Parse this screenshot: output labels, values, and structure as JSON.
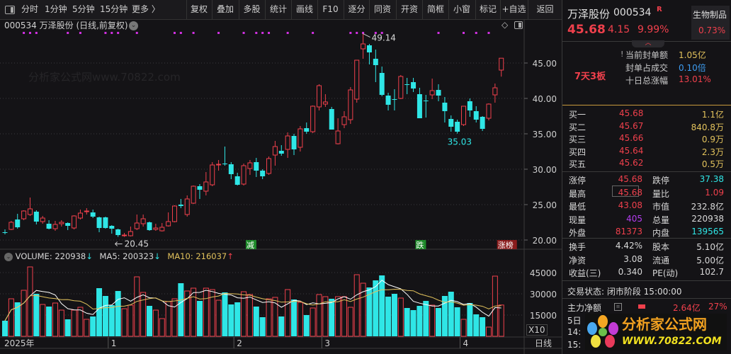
{
  "toolbar": {
    "periods": [
      "分时",
      "1分钟",
      "5分钟",
      "15分钟",
      "更多 〉"
    ],
    "buttons": [
      "复权",
      "叠加",
      "多股",
      "统计",
      "画线",
      "F10",
      "逐分",
      "同资",
      "开资",
      "简框",
      "小窗",
      "标记",
      "+自选",
      "返回"
    ]
  },
  "chart_header": {
    "title": "000534 万泽股份 (日线,前复权)"
  },
  "watermark": "分析家公式网www.70822.com",
  "logo_text": {
    "cn": "分析家公式网",
    "url": "WWW.70822.COM"
  },
  "stock": {
    "name": "万泽股份",
    "code": "000534",
    "badge": "R",
    "price": "45.68",
    "change": "4.15",
    "change_pct": "9.99%",
    "sector": "生物制品",
    "sector_pct": "0.73%"
  },
  "limit_info": {
    "streak": "7天3板",
    "rows": [
      {
        "label": "当前封单额",
        "value": "1.05亿"
      },
      {
        "label": "封单占成交",
        "value": "0.10倍"
      },
      {
        "label": "十日总涨幅",
        "value": "13.01%"
      }
    ]
  },
  "bids": [
    {
      "label": "买一",
      "price": "45.68",
      "vol": "1.1亿"
    },
    {
      "label": "买二",
      "price": "45.67",
      "vol": "840.8万"
    },
    {
      "label": "买三",
      "price": "45.66",
      "vol": "0.9万"
    },
    {
      "label": "买四",
      "price": "45.64",
      "vol": "2.3万"
    },
    {
      "label": "买五",
      "price": "45.62",
      "vol": "0.5万"
    }
  ],
  "stats": [
    [
      {
        "label": "涨停",
        "value": "45.68"
      },
      {
        "label": "跌停",
        "value": "37.38"
      }
    ],
    [
      {
        "label": "最高",
        "value": "45.68"
      },
      {
        "label": "量比",
        "value": "1.09"
      }
    ],
    [
      {
        "label": "最低",
        "value": "43.08"
      },
      {
        "label": "市值",
        "value": "232.8亿"
      }
    ],
    [
      {
        "label": "现量",
        "value": "405"
      },
      {
        "label": "总量",
        "value": "220938"
      }
    ],
    [
      {
        "label": "外盘",
        "value": "81373"
      },
      {
        "label": "内盘",
        "value": "139565"
      }
    ]
  ],
  "fundamentals": [
    [
      {
        "label": "换手",
        "value": "4.42%"
      },
      {
        "label": "股本",
        "value": "5.10亿"
      }
    ],
    [
      {
        "label": "净资",
        "value": "3.08"
      },
      {
        "label": "流通",
        "value": "5.00亿"
      }
    ],
    [
      {
        "label": "收益(三)",
        "value": "0.340"
      },
      {
        "label": "PE(动)",
        "value": "102.7"
      }
    ]
  ],
  "trade_status": "交易状态: 闭市阶段 15:00:00",
  "main_flow": {
    "label": "主力净额",
    "value": "2.64亿",
    "pct": "27%"
  },
  "partial_rows": [
    "5日",
    "14:",
    "15:"
  ],
  "colors": {
    "up": "#f0404c",
    "down": "#2fe6e6",
    "ma5": "#ffffff",
    "ma10": "#e2c25c",
    "background": "#141316"
  },
  "chart_data": {
    "type": "candlestick",
    "period": "日线",
    "price_axis": {
      "ticks": [
        "45.00",
        "40.00",
        "35.00",
        "30.00",
        "25.00",
        "20.00"
      ],
      "range": [
        18.5,
        50
      ]
    },
    "volume_axis": {
      "ticks": [
        "45000",
        "30000",
        "15000"
      ],
      "multiplier": "X10"
    },
    "x_labels": [
      {
        "label": "2025年",
        "index": 0
      },
      {
        "label": "1",
        "index": 17
      },
      {
        "label": "2",
        "index": 37
      },
      {
        "label": "3",
        "index": 51
      },
      {
        "label": "4",
        "index": 73
      }
    ],
    "volume_legend": {
      "volume": "VOLUME: 220938",
      "volume_arrow": "↓",
      "ma5": "MA5: 200323",
      "ma5_arrow": "↓",
      "ma10": "MA10: 216037",
      "ma10_arrow": "↑"
    },
    "annotations": [
      {
        "text": "49.14",
        "index": 57,
        "kind": "high"
      },
      {
        "text": "20.45",
        "index": 18,
        "kind": "low"
      },
      {
        "text": "35.03",
        "index": 72,
        "kind": "low"
      }
    ],
    "tags": [
      {
        "text": "减",
        "index": 39,
        "color": "#1e8a2a"
      },
      {
        "text": "跌",
        "index": 66,
        "color": "#1e8a2a"
      },
      {
        "text": "涨榜",
        "index": 79,
        "color": "#8a1c1c"
      }
    ],
    "signal_markers": [
      3,
      4,
      5,
      10,
      12,
      16,
      17,
      18,
      21,
      27,
      28,
      30,
      34,
      38,
      40,
      41,
      42,
      45,
      49,
      55,
      56,
      57,
      59,
      60,
      69,
      73,
      75,
      77
    ],
    "ohlc": [
      [
        21.1,
        21.5,
        20.8,
        21.1
      ],
      [
        21.5,
        22.7,
        21.4,
        22.5
      ],
      [
        22.9,
        23.7,
        21.6,
        21.8
      ],
      [
        23.0,
        24.2,
        22.8,
        24.1
      ],
      [
        23.6,
        26.0,
        23.4,
        24.4
      ],
      [
        24.0,
        24.2,
        22.2,
        22.6
      ],
      [
        22.6,
        23.4,
        22.3,
        23.1
      ],
      [
        22.3,
        22.8,
        21.5,
        21.6
      ],
      [
        21.6,
        22.7,
        21.3,
        22.2
      ],
      [
        22.3,
        22.8,
        21.9,
        22.5
      ],
      [
        22.4,
        22.5,
        21.4,
        22.0
      ],
      [
        21.7,
        23.5,
        21.5,
        23.4
      ],
      [
        23.1,
        24.3,
        22.9,
        23.8
      ],
      [
        24.1,
        24.5,
        23.6,
        24.1
      ],
      [
        23.9,
        24.3,
        23.1,
        23.3
      ],
      [
        23.2,
        23.3,
        21.1,
        21.7
      ],
      [
        23.2,
        23.3,
        21.6,
        21.7
      ],
      [
        22.0,
        22.1,
        20.9,
        21.6
      ],
      [
        21.5,
        21.6,
        20.45,
        20.7
      ],
      [
        20.6,
        21.0,
        20.45,
        20.7
      ],
      [
        20.6,
        21.9,
        20.5,
        21.2
      ],
      [
        21.6,
        23.6,
        21.4,
        22.4
      ],
      [
        22.3,
        23.6,
        21.9,
        23.0
      ],
      [
        22.5,
        22.6,
        21.3,
        21.4
      ],
      [
        21.5,
        22.3,
        21.3,
        21.7
      ],
      [
        21.3,
        22.4,
        21.2,
        21.8
      ],
      [
        22.0,
        23.9,
        21.9,
        22.6
      ],
      [
        22.6,
        24.9,
        22.5,
        24.8
      ],
      [
        25.0,
        25.8,
        24.5,
        24.8
      ],
      [
        23.6,
        26.3,
        23.3,
        25.8
      ],
      [
        25.2,
        27.7,
        25.1,
        27.6
      ],
      [
        27.6,
        27.9,
        25.8,
        27.1
      ],
      [
        26.9,
        29.6,
        26.3,
        28.2
      ],
      [
        27.8,
        31.0,
        27.6,
        30.6
      ],
      [
        30.6,
        31.3,
        29.8,
        30.7
      ],
      [
        30.8,
        33.2,
        30.5,
        30.7
      ],
      [
        30.7,
        31.0,
        28.6,
        29.3
      ],
      [
        29.0,
        29.5,
        27.7,
        27.8
      ],
      [
        27.9,
        30.8,
        27.7,
        30.5
      ],
      [
        30.1,
        31.3,
        29.2,
        30.9
      ],
      [
        31.0,
        31.6,
        28.9,
        29.8
      ],
      [
        29.8,
        30.0,
        28.6,
        29.0
      ],
      [
        29.4,
        31.8,
        29.2,
        31.5
      ],
      [
        32.0,
        34.0,
        30.5,
        33.2
      ],
      [
        32.6,
        33.4,
        31.9,
        32.2
      ],
      [
        32.8,
        35.2,
        31.6,
        34.7
      ],
      [
        34.7,
        35.0,
        32.0,
        32.8
      ],
      [
        33.1,
        36.1,
        32.5,
        35.7
      ],
      [
        35.8,
        36.6,
        35.0,
        35.3
      ],
      [
        35.3,
        39.0,
        35.1,
        38.9
      ],
      [
        38.8,
        42.0,
        38.3,
        41.8
      ],
      [
        39.2,
        40.6,
        38.8,
        39.5
      ],
      [
        38.5,
        38.8,
        35.6,
        35.6
      ],
      [
        33.6,
        37.2,
        33.5,
        35.4
      ],
      [
        36.3,
        38.2,
        35.8,
        37.4
      ],
      [
        37.0,
        41.6,
        36.4,
        41.2
      ],
      [
        39.9,
        45.4,
        39.4,
        45.4
      ],
      [
        47.0,
        49.14,
        45.6,
        47.7
      ],
      [
        47.5,
        47.7,
        44.8,
        46.5
      ],
      [
        45.6,
        46.9,
        42.3,
        44.7
      ],
      [
        43.6,
        44.5,
        40.3,
        40.5
      ],
      [
        40.4,
        40.8,
        38.3,
        39.1
      ],
      [
        39.9,
        41.3,
        38.3,
        39.8
      ],
      [
        40.0,
        43.3,
        39.9,
        43.1
      ],
      [
        42.0,
        42.9,
        40.6,
        41.9
      ],
      [
        42.3,
        42.9,
        40.9,
        41.4
      ],
      [
        40.6,
        41.5,
        37.2,
        37.2
      ],
      [
        39.7,
        40.5,
        37.3,
        39.6
      ],
      [
        40.5,
        42.8,
        39.9,
        41.1
      ],
      [
        41.2,
        42.0,
        39.6,
        40.4
      ],
      [
        39.4,
        40.2,
        36.6,
        38.2
      ],
      [
        37.1,
        37.6,
        35.3,
        36.0
      ],
      [
        36.7,
        37.0,
        35.03,
        35.3
      ],
      [
        36.3,
        38.9,
        36.1,
        38.9
      ],
      [
        39.6,
        40.0,
        37.4,
        38.3
      ],
      [
        38.2,
        38.9,
        36.6,
        37.0
      ],
      [
        37.4,
        37.5,
        35.4,
        35.7
      ],
      [
        37.2,
        39.3,
        36.9,
        39.2
      ],
      [
        40.5,
        42.1,
        39.4,
        41.5
      ],
      [
        44.0,
        45.68,
        43.08,
        45.68
      ]
    ],
    "volume": [
      11000,
      26500,
      24000,
      32500,
      49000,
      30000,
      22500,
      21000,
      23500,
      18500,
      12000,
      18500,
      20500,
      12000,
      14000,
      34000,
      28500,
      22000,
      32000,
      19500,
      22000,
      42000,
      31000,
      21500,
      18500,
      12500,
      24500,
      26500,
      37500,
      32000,
      34000,
      25000,
      34000,
      33000,
      25500,
      31000,
      22500,
      24000,
      31500,
      29500,
      21000,
      13500,
      26500,
      27500,
      14000,
      33000,
      26000,
      24000,
      15000,
      20000,
      29500,
      28000,
      26500,
      28000,
      28000,
      20500,
      43500,
      37500,
      34500,
      39500,
      43000,
      28000,
      30000,
      27000,
      20000,
      18500,
      21500,
      25000,
      22000,
      20000,
      28500,
      31500,
      20500,
      12000,
      23500,
      15500,
      13500,
      6500,
      42500,
      22094
    ]
  }
}
